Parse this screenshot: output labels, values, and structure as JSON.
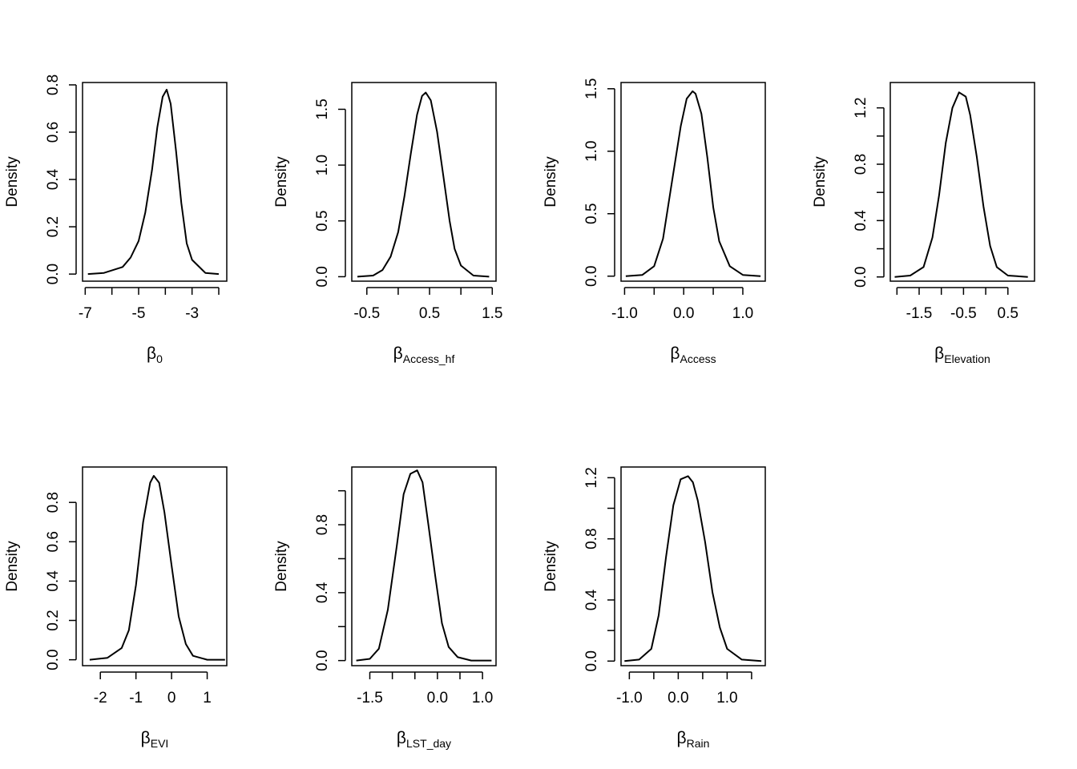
{
  "chart_data": [
    {
      "type": "line",
      "ylabel": "Density",
      "xlabel": {
        "symbol": "β",
        "sub": "0"
      },
      "xlim": [
        -7.1,
        -1.7
      ],
      "ylim": [
        -0.03,
        0.81
      ],
      "xticks": [
        -7,
        -6,
        -5,
        -4,
        -3,
        -2
      ],
      "xtick_labels": [
        "-7",
        "",
        "-5",
        "",
        "-3",
        ""
      ],
      "yticks": [
        0,
        0.2,
        0.4,
        0.6,
        0.8
      ],
      "ytick_labels": [
        "0.0",
        "0.2",
        "0.4",
        "0.6",
        "0.8"
      ],
      "series": [
        {
          "x": [
            -6.9,
            -6.3,
            -5.6,
            -5.3,
            -5.0,
            -4.75,
            -4.5,
            -4.3,
            -4.1,
            -3.95,
            -3.8,
            -3.6,
            -3.4,
            -3.2,
            -3.0,
            -2.5,
            -2.0
          ],
          "y": [
            0.0,
            0.005,
            0.03,
            0.07,
            0.14,
            0.26,
            0.44,
            0.62,
            0.75,
            0.78,
            0.72,
            0.52,
            0.3,
            0.13,
            0.06,
            0.005,
            0.0
          ]
        }
      ]
    },
    {
      "type": "line",
      "ylabel": "Density",
      "xlabel": {
        "symbol": "β",
        "sub": "Access_hf"
      },
      "xlim": [
        -0.74,
        1.56
      ],
      "ylim": [
        -0.04,
        1.74
      ],
      "xticks": [
        -0.5,
        0,
        0.5,
        1.0,
        1.5
      ],
      "xtick_labels": [
        "-0.5",
        "",
        "0.5",
        "",
        "1.5"
      ],
      "yticks": [
        0,
        0.5,
        1.0,
        1.5
      ],
      "ytick_labels": [
        "0.0",
        "0.5",
        "1.0",
        "1.5"
      ],
      "series": [
        {
          "x": [
            -0.65,
            -0.4,
            -0.25,
            -0.12,
            0.0,
            0.1,
            0.2,
            0.3,
            0.38,
            0.44,
            0.52,
            0.62,
            0.72,
            0.82,
            0.9,
            1.0,
            1.2,
            1.45
          ],
          "y": [
            0.0,
            0.01,
            0.06,
            0.18,
            0.4,
            0.72,
            1.1,
            1.45,
            1.62,
            1.65,
            1.58,
            1.3,
            0.9,
            0.5,
            0.25,
            0.1,
            0.01,
            0.0
          ]
        }
      ]
    },
    {
      "type": "line",
      "ylabel": "Density",
      "xlabel": {
        "symbol": "β",
        "sub": "Access"
      },
      "xlim": [
        -1.06,
        1.38
      ],
      "ylim": [
        -0.04,
        1.55
      ],
      "xticks": [
        -1.0,
        -0.5,
        0,
        0.5,
        1.0
      ],
      "xtick_labels": [
        "-1.0",
        "",
        "0.0",
        "",
        "1.0"
      ],
      "yticks": [
        0,
        0.5,
        1.0,
        1.5
      ],
      "ytick_labels": [
        "0.0",
        "0.5",
        "1.0",
        "1.5"
      ],
      "series": [
        {
          "x": [
            -0.98,
            -0.7,
            -0.5,
            -0.35,
            -0.2,
            -0.05,
            0.05,
            0.15,
            0.2,
            0.3,
            0.4,
            0.5,
            0.6,
            0.78,
            1.0,
            1.3
          ],
          "y": [
            0.0,
            0.01,
            0.08,
            0.3,
            0.75,
            1.2,
            1.42,
            1.48,
            1.46,
            1.3,
            0.95,
            0.55,
            0.28,
            0.08,
            0.01,
            0.0
          ]
        }
      ]
    },
    {
      "type": "line",
      "ylabel": "Density",
      "xlabel": {
        "symbol": "β",
        "sub": "Elevation"
      },
      "xlim": [
        -2.15,
        1.1
      ],
      "ylim": [
        -0.03,
        1.38
      ],
      "xticks": [
        -2.0,
        -1.5,
        -1.0,
        -0.5,
        0,
        0.5
      ],
      "xtick_labels": [
        "",
        "-1.5",
        "",
        "-0.5",
        "",
        "0.5"
      ],
      "yticks": [
        0,
        0.2,
        0.4,
        0.6,
        0.8,
        1.0,
        1.2
      ],
      "ytick_labels": [
        "0.0",
        "",
        "0.4",
        "",
        "0.8",
        "",
        "1.2"
      ],
      "series": [
        {
          "x": [
            -2.05,
            -1.7,
            -1.4,
            -1.2,
            -1.05,
            -0.9,
            -0.75,
            -0.6,
            -0.45,
            -0.35,
            -0.2,
            -0.05,
            0.1,
            0.25,
            0.5,
            0.95
          ],
          "y": [
            0.0,
            0.01,
            0.07,
            0.28,
            0.58,
            0.95,
            1.2,
            1.31,
            1.28,
            1.15,
            0.85,
            0.5,
            0.22,
            0.07,
            0.01,
            0.0
          ]
        }
      ]
    },
    {
      "type": "line",
      "ylabel": "Density",
      "xlabel": {
        "symbol": "β",
        "sub": "EVI"
      },
      "xlim": [
        -2.5,
        1.55
      ],
      "ylim": [
        -0.03,
        0.98
      ],
      "xticks": [
        -2,
        -1,
        0,
        1
      ],
      "xtick_labels": [
        "-2",
        "-1",
        "0",
        "1"
      ],
      "yticks": [
        0,
        0.2,
        0.4,
        0.6,
        0.8
      ],
      "ytick_labels": [
        "0.0",
        "0.2",
        "0.4",
        "0.6",
        "0.8"
      ],
      "series": [
        {
          "x": [
            -2.3,
            -1.8,
            -1.4,
            -1.2,
            -1.0,
            -0.8,
            -0.6,
            -0.5,
            -0.35,
            -0.2,
            0.0,
            0.2,
            0.4,
            0.6,
            1.0,
            1.5
          ],
          "y": [
            0.0,
            0.01,
            0.06,
            0.15,
            0.38,
            0.7,
            0.9,
            0.935,
            0.9,
            0.75,
            0.48,
            0.22,
            0.08,
            0.02,
            0.0,
            0.0
          ]
        }
      ]
    },
    {
      "type": "line",
      "ylabel": "Density",
      "xlabel": {
        "symbol": "β",
        "sub": "LST_day"
      },
      "xlim": [
        -1.9,
        1.3
      ],
      "ylim": [
        -0.03,
        1.14
      ],
      "xticks": [
        -1.5,
        -1.0,
        -0.5,
        0,
        0.5,
        1.0
      ],
      "xtick_labels": [
        "-1.5",
        "",
        "",
        "0.0",
        "",
        "1.0"
      ],
      "yticks": [
        0,
        0.2,
        0.4,
        0.6,
        0.8,
        1.0
      ],
      "ytick_labels": [
        "0.0",
        "",
        "0.4",
        "",
        "0.8",
        ""
      ],
      "series": [
        {
          "x": [
            -1.8,
            -1.5,
            -1.3,
            -1.1,
            -0.9,
            -0.75,
            -0.6,
            -0.45,
            -0.33,
            -0.2,
            -0.05,
            0.1,
            0.25,
            0.45,
            0.75,
            1.2
          ],
          "y": [
            0.0,
            0.01,
            0.07,
            0.3,
            0.68,
            0.98,
            1.1,
            1.12,
            1.05,
            0.8,
            0.5,
            0.22,
            0.08,
            0.02,
            0.0,
            0.0
          ]
        }
      ]
    },
    {
      "type": "line",
      "ylabel": "Density",
      "xlabel": {
        "symbol": "β",
        "sub": "Rain"
      },
      "xlim": [
        -1.17,
        1.78
      ],
      "ylim": [
        -0.03,
        1.27
      ],
      "xticks": [
        -1.0,
        -0.5,
        0,
        0.5,
        1.0,
        1.5
      ],
      "xtick_labels": [
        "-1.0",
        "",
        "0.0",
        "",
        "1.0",
        ""
      ],
      "yticks": [
        0,
        0.2,
        0.4,
        0.6,
        0.8,
        1.0,
        1.2
      ],
      "ytick_labels": [
        "0.0",
        "",
        "0.4",
        "",
        "0.8",
        "",
        "1.2"
      ],
      "series": [
        {
          "x": [
            -1.1,
            -0.8,
            -0.55,
            -0.4,
            -0.25,
            -0.1,
            0.05,
            0.2,
            0.3,
            0.4,
            0.55,
            0.7,
            0.85,
            1.0,
            1.3,
            1.7
          ],
          "y": [
            0.0,
            0.01,
            0.08,
            0.3,
            0.68,
            1.02,
            1.19,
            1.21,
            1.17,
            1.05,
            0.78,
            0.45,
            0.22,
            0.08,
            0.01,
            0.0
          ]
        }
      ]
    }
  ]
}
